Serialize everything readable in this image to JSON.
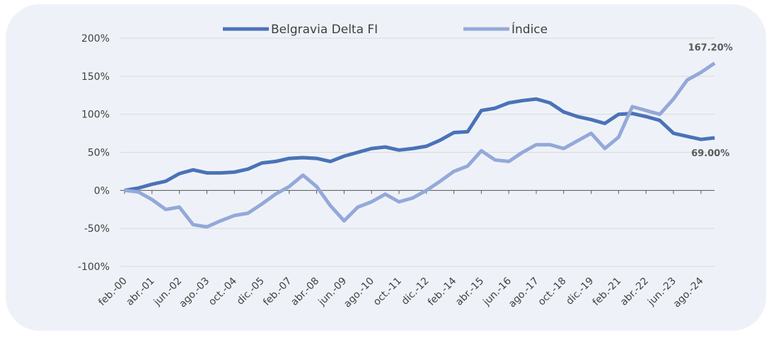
{
  "chart_data": {
    "type": "line",
    "categories": [
      "feb.-00",
      null,
      "abr.-01",
      null,
      "jun.-02",
      null,
      "ago.-03",
      null,
      "oct.-04",
      null,
      "dic.-05",
      null,
      "feb.-07",
      null,
      "abr.-08",
      null,
      "jun.-09",
      null,
      "ago.-10",
      null,
      "oct.-11",
      null,
      "dic.-12",
      null,
      "feb.-14",
      null,
      "abr.-15",
      null,
      "jun.-16",
      null,
      "ago.-17",
      null,
      "oct.-18",
      null,
      "dic.-19",
      null,
      "feb.-21",
      null,
      "abr.-22",
      null,
      "jun.-23",
      null,
      "ago.-24",
      null
    ],
    "series": [
      {
        "name": "Belgravia Delta FI",
        "color": "#4a72b8",
        "values": [
          0,
          3,
          8,
          12,
          22,
          27,
          23,
          23,
          24,
          28,
          36,
          38,
          42,
          43,
          42,
          38,
          45,
          50,
          55,
          57,
          53,
          55,
          58,
          66,
          76,
          77,
          105,
          108,
          115,
          118,
          120,
          115,
          103,
          97,
          93,
          88,
          100,
          101,
          97,
          92,
          75,
          71,
          67,
          69
        ],
        "value_labels": [
          null,
          null,
          null,
          null,
          null,
          null,
          null,
          null,
          null,
          null,
          null,
          null,
          null,
          null,
          null,
          null,
          null,
          null,
          null,
          null,
          null,
          null,
          null,
          null,
          null,
          null,
          null,
          null,
          null,
          null,
          null,
          null,
          null,
          null,
          null,
          null,
          null,
          null,
          null,
          null,
          null,
          null,
          null,
          "69.00%"
        ]
      },
      {
        "name": "Índice",
        "color": "#94a9d9",
        "values": [
          0,
          -2,
          -12,
          -25,
          -22,
          -45,
          -48,
          -40,
          -33,
          -30,
          -18,
          -5,
          5,
          20,
          5,
          -20,
          -40,
          -22,
          -15,
          -5,
          -15,
          -10,
          0,
          12,
          25,
          32,
          52,
          40,
          38,
          50,
          60,
          60,
          55,
          65,
          75,
          55,
          70,
          110,
          105,
          100,
          120,
          145,
          155,
          167.2
        ],
        "value_labels": [
          null,
          null,
          null,
          null,
          null,
          null,
          null,
          null,
          null,
          null,
          null,
          null,
          null,
          null,
          null,
          null,
          null,
          null,
          null,
          null,
          null,
          null,
          null,
          null,
          null,
          null,
          null,
          null,
          null,
          null,
          null,
          null,
          null,
          null,
          null,
          null,
          null,
          null,
          null,
          null,
          null,
          null,
          null,
          "167.20%"
        ]
      }
    ],
    "ylim": [
      -100,
      200
    ],
    "yticks": [
      {
        "value": -100,
        "label": "-100%"
      },
      {
        "value": -50,
        "label": "-50%"
      },
      {
        "value": 0,
        "label": "0%"
      },
      {
        "value": 50,
        "label": "50%"
      },
      {
        "value": 100,
        "label": "100%"
      },
      {
        "value": 150,
        "label": "150%"
      },
      {
        "value": 200,
        "label": "200%"
      }
    ],
    "grid": true
  }
}
